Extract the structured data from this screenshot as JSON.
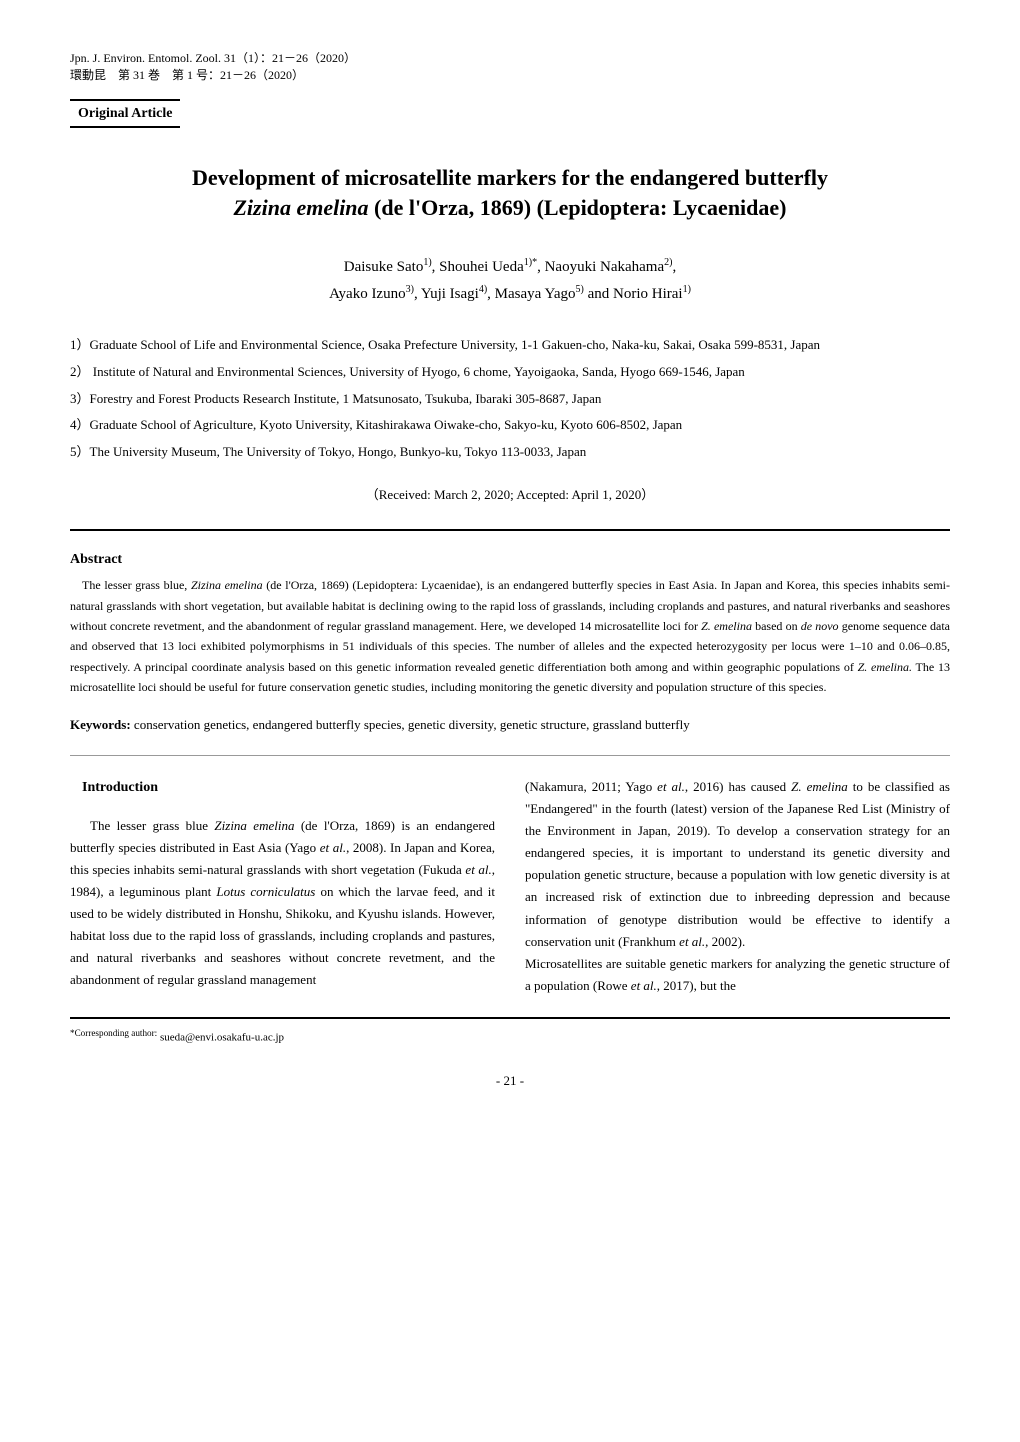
{
  "journal": {
    "line1": "Jpn. J. Environ. Entomol. Zool. 31（1）：21－26（2020）",
    "line2": "環動昆　第 31 巻　第 1 号：21－26（2020）"
  },
  "article_type": "Original Article",
  "title": {
    "line1_pre": "Development of microsatellite markers for the endangered butterfly",
    "line2_italic": "Zizina emelina",
    "line2_post": " (de l'Orza, 1869) (Lepidoptera: Lycaenidae)"
  },
  "authors": {
    "line1": "Daisuke Sato",
    "a1_sup": "1)",
    "a2": ", Shouhei Ueda",
    "a2_sup": "1)*",
    "a3": ", Naoyuki Nakahama",
    "a3_sup": "2)",
    "a3_end": ",",
    "line2_a4": "Ayako Izuno",
    "a4_sup": "3)",
    "a5": ", Yuji Isagi",
    "a5_sup": "4)",
    "a6": ", Masaya Yago",
    "a6_sup": "5)",
    "a7": " and Norio Hirai",
    "a7_sup": "1)"
  },
  "affiliations": [
    "1）Graduate School of Life and Environmental Science, Osaka Prefecture University, 1-1 Gakuen-cho, Naka-ku, Sakai, Osaka 599-8531, Japan",
    "2） Institute of Natural and Environmental Sciences, University of Hyogo, 6 chome, Yayoigaoka, Sanda, Hyogo 669-1546, Japan",
    "3）Forestry and Forest Products Research Institute, 1 Matsunosato, Tsukuba, Ibaraki 305-8687, Japan",
    "4）Graduate School of Agriculture, Kyoto University, Kitashirakawa Oiwake-cho, Sakyo-ku, Kyoto 606-8502, Japan",
    "5）The University Museum, The University of Tokyo, Hongo, Bunkyo-ku, Tokyo 113-0033, Japan"
  ],
  "received": "（Received: March 2, 2020; Accepted: April 1, 2020）",
  "abstract": {
    "heading": "Abstract",
    "p1_pre": "The lesser grass blue, ",
    "p1_i1": "Zizina emelina",
    "p1_mid1": " (de l'Orza, 1869) (Lepidoptera: Lycaenidae), is an endangered butterfly species in East Asia. In Japan and Korea, this species inhabits semi-natural grasslands with short vegetation, but available habitat is declining owing to the rapid loss of grasslands, including croplands and pastures, and natural riverbanks and seashores without concrete revetment, and the abandonment of regular grassland management. Here, we developed 14 microsatellite loci for ",
    "p1_i2": "Z. emelina",
    "p1_mid2": " based on ",
    "p1_i3": "de novo",
    "p1_mid3": " genome sequence data and observed that 13 loci exhibited polymorphisms in 51 individuals of this species. The number of alleles and the expected heterozygosity per locus were 1–10 and 0.06–0.85, respectively. A principal coordinate analysis based on this genetic information revealed genetic differentiation both among and within geographic populations of ",
    "p1_i4": "Z. emelina.",
    "p1_end": " The 13 microsatellite loci should be useful for future conservation genetic studies, including monitoring the genetic diversity and population structure of this species."
  },
  "keywords": {
    "label": "Keywords:",
    "text": " conservation genetics, endangered butterfly species, genetic diversity, genetic structure, grassland butterfly"
  },
  "introduction": {
    "heading": "Introduction",
    "left": {
      "pre": "The lesser grass blue ",
      "i1": "Zizina emelina",
      "mid1": " (de l'Orza, 1869) is an endangered butterfly species distributed in East Asia (Yago ",
      "i2": "et al.",
      "mid2": ", 2008). In Japan and Korea, this species inhabits semi-natural grasslands with short vegetation (Fukuda ",
      "i3": "et al.",
      "mid3": ", 1984), a leguminous plant ",
      "i4": "Lotus corniculatus",
      "mid4": " on which the larvae feed, and it used to be widely distributed in Honshu, Shikoku, and Kyushu islands. However, habitat loss due to the rapid loss of grasslands, including croplands and pastures, and natural riverbanks and seashores without concrete revetment, and the abandonment of regular grassland management"
    },
    "right": {
      "pre": "(Nakamura, 2011; Yago ",
      "i1": "et al.",
      "mid1": ", 2016) has caused ",
      "i2": "Z. emelina",
      "mid2": " to be classified as \"Endangered\" in the fourth (latest) version of the Japanese Red List (Ministry of the Environment in Japan, 2019). To develop a conservation strategy for an endangered species, it is important to understand its genetic diversity and population genetic structure, because a population with low genetic diversity is at an increased risk of extinction due to inbreeding depression and because information of genotype distribution would be effective to identify a conservation unit (Frankhum ",
      "i3": "et al.",
      "mid3": ", 2002).",
      "p2_pre": "Microsatellites are suitable genetic markers for analyzing the genetic structure of a population (Rowe ",
      "p2_i1": "et al.",
      "p2_end": ", 2017), but the"
    }
  },
  "footnote": {
    "label": "*Corresponding author:",
    "text": " sueda@envi.osakafu-u.ac.jp"
  },
  "page_number": "- 21 -"
}
